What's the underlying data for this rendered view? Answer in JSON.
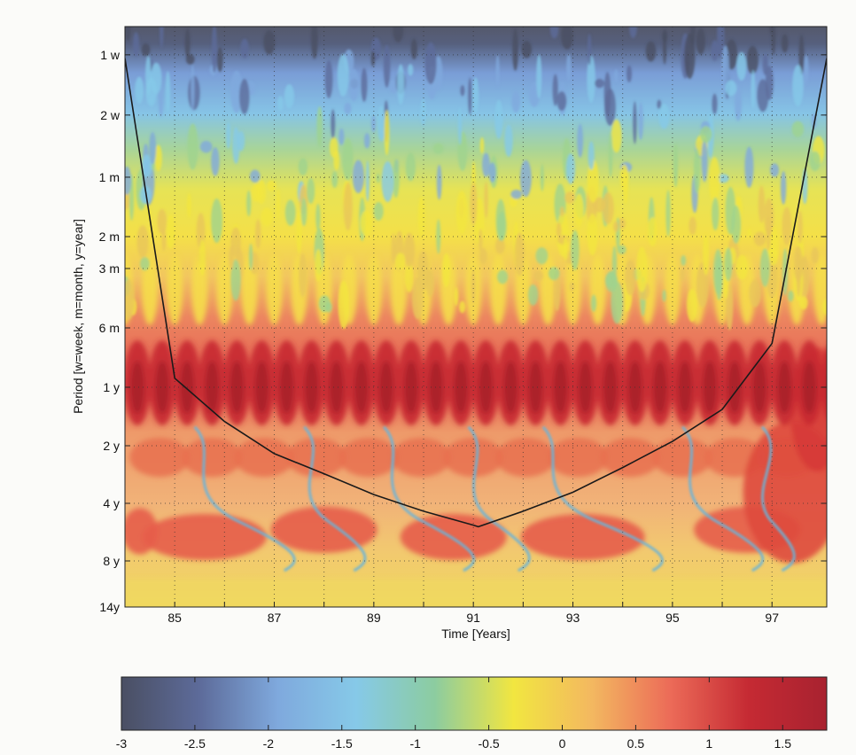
{
  "chart_data": {
    "type": "heatmap",
    "title": "",
    "xlabel": "Time [Years]",
    "ylabel": "Period [w=week, m=month, y=year]",
    "x_ticks": [
      "85",
      "87",
      "89",
      "91",
      "93",
      "95",
      "97"
    ],
    "x_tick_values": [
      1985,
      1987,
      1989,
      1991,
      1993,
      1995,
      1997
    ],
    "xlim": [
      1984,
      1998.1
    ],
    "y_ticks": [
      "1 w",
      "2 w",
      "1 m",
      "2 m",
      "3 m",
      "6 m",
      "1 y",
      "2 y",
      "4 y",
      "8 y",
      "14y"
    ],
    "y_tick_periods_years": [
      0.0192,
      0.0384,
      0.0833,
      0.1667,
      0.25,
      0.5,
      1,
      2,
      4,
      8,
      14
    ],
    "y_scale": "log2, inverted (short periods at top)",
    "grid": "dotted",
    "cone_of_influence": {
      "x": [
        1984,
        1985,
        1986,
        1987,
        1988,
        1989,
        1990,
        1991,
        1991.1,
        1992,
        1993,
        1994,
        1995,
        1996,
        1997,
        1998.1
      ],
      "period_years": [
        0.02,
        0.9,
        1.5,
        2.2,
        2.8,
        3.6,
        4.4,
        5.2,
        5.3,
        4.4,
        3.5,
        2.6,
        1.9,
        1.3,
        0.6,
        0.02
      ]
    },
    "dominant_band": {
      "period_years": 1,
      "note": "strong positive power at the annual period across all years"
    },
    "colorbar": {
      "range": [
        -3,
        1.8
      ],
      "ticks": [
        "-3",
        "-2.5",
        "-2",
        "-1.5",
        "-1",
        "-0.5",
        "0",
        "0.5",
        "1",
        "1.5"
      ],
      "tick_values": [
        -3,
        -2.5,
        -2,
        -1.5,
        -1,
        -0.5,
        0,
        0.5,
        1,
        1.5
      ],
      "colors": [
        "#4a4f63",
        "#5d6b9a",
        "#7fa9dd",
        "#86c9e8",
        "#8ccca0",
        "#f2e640",
        "#f3b860",
        "#ec6b58",
        "#c52a33",
        "#a82230"
      ]
    }
  }
}
